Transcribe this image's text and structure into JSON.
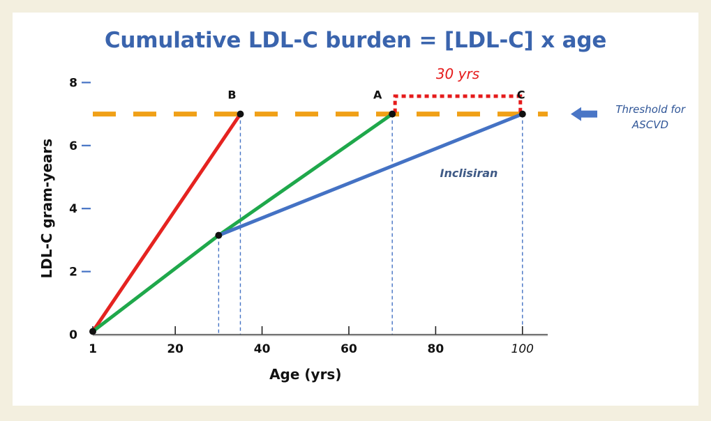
{
  "title": "Cumulative LDL-C burden = [LDL-C] x age",
  "colors": {
    "background": "#f3efdf",
    "title": "#3a64ad",
    "threshold": "#f0a017",
    "red_series": "#e52320",
    "green_series": "#1fa84b",
    "blue_series": "#4472c4",
    "dash_blue": "#4472c4",
    "bracket_red": "#e51b1b"
  },
  "chart_data": {
    "type": "line",
    "xlabel": "Age (yrs)",
    "ylabel": "LDL-C gram-years",
    "xlim": [
      0,
      105
    ],
    "ylim": [
      0,
      8
    ],
    "x_ticks": [
      {
        "value": 1,
        "label": "1"
      },
      {
        "value": 20,
        "label": "20"
      },
      {
        "value": 40,
        "label": "40"
      },
      {
        "value": 60,
        "label": "60"
      },
      {
        "value": 80,
        "label": "80"
      },
      {
        "value": 100,
        "label": "100"
      }
    ],
    "y_ticks": [
      {
        "value": 0,
        "label": "0"
      },
      {
        "value": 2,
        "label": "2"
      },
      {
        "value": 4,
        "label": "4"
      },
      {
        "value": 6,
        "label": "6"
      },
      {
        "value": 8,
        "label": "8"
      }
    ],
    "threshold": {
      "value": 7,
      "label": "Threshold for ASCVD"
    },
    "series": [
      {
        "color": "red",
        "points": [
          {
            "x": 1,
            "y": 0.1
          },
          {
            "x": 35,
            "y": 7
          }
        ]
      },
      {
        "color": "green",
        "points": [
          {
            "x": 1,
            "y": 0.1
          },
          {
            "x": 30,
            "y": 3.15
          },
          {
            "x": 70,
            "y": 7
          }
        ]
      },
      {
        "name": "Inclisiran",
        "color": "blue",
        "points": [
          {
            "x": 30,
            "y": 3.15
          },
          {
            "x": 100,
            "y": 7
          }
        ]
      }
    ],
    "markers": [
      {
        "x": 1,
        "y": 0.1,
        "label": ""
      },
      {
        "x": 30,
        "y": 3.15,
        "label": ""
      },
      {
        "x": 35,
        "y": 7,
        "label": "B"
      },
      {
        "x": 70,
        "y": 7,
        "label": "A"
      },
      {
        "x": 100,
        "y": 7,
        "label": "C"
      }
    ],
    "drop_lines_x": [
      30,
      35,
      70,
      100
    ],
    "bracket": {
      "from": 70,
      "to": 100,
      "label": "30 yrs"
    },
    "annotations": {
      "inclisiran_label": "Inclisiran",
      "threshold_line1": "Threshold for",
      "threshold_line2": "ASCVD"
    }
  }
}
